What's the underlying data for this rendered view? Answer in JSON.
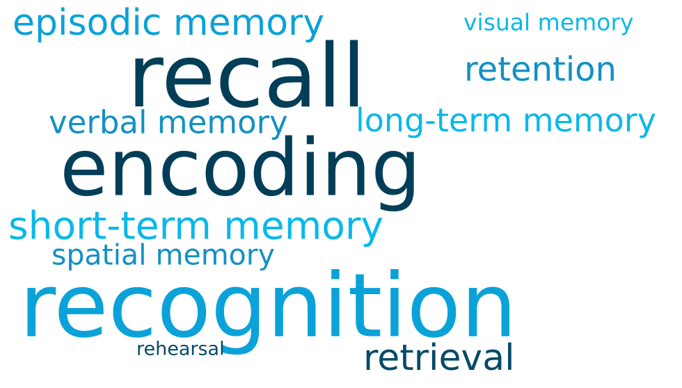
{
  "colors": {
    "background": "#ffffff",
    "dark_navy": "#023e58",
    "deep_teal": "#054a68",
    "cyan_bright": "#0ab8e8",
    "cyan_medium": "#0aa2d8",
    "cyan_muted": "#1390c4"
  },
  "words": {
    "recall": {
      "text": "recall",
      "color": "#023e58"
    },
    "encoding": {
      "text": "encoding",
      "color": "#023e58"
    },
    "recognition": {
      "text": "recognition",
      "color": "#0aa2d8"
    },
    "episodic_memory": {
      "text": "episodic memory",
      "color": "#0aa2d8"
    },
    "visual_memory": {
      "text": "visual memory",
      "color": "#0ab8e8"
    },
    "retention": {
      "text": "retention",
      "color": "#1390c4"
    },
    "verbal_memory": {
      "text": "verbal memory",
      "color": "#1390c4"
    },
    "long_term_memory": {
      "text": "long-term memory",
      "color": "#0ab8e8"
    },
    "short_term_memory": {
      "text": "short-term memory",
      "color": "#0ab8e8"
    },
    "spatial_memory": {
      "text": "spatial memory",
      "color": "#1390c4"
    },
    "rehearsal": {
      "text": "rehearsal",
      "color": "#054a68"
    },
    "retrieval": {
      "text": "retrieval",
      "color": "#054a68"
    }
  }
}
